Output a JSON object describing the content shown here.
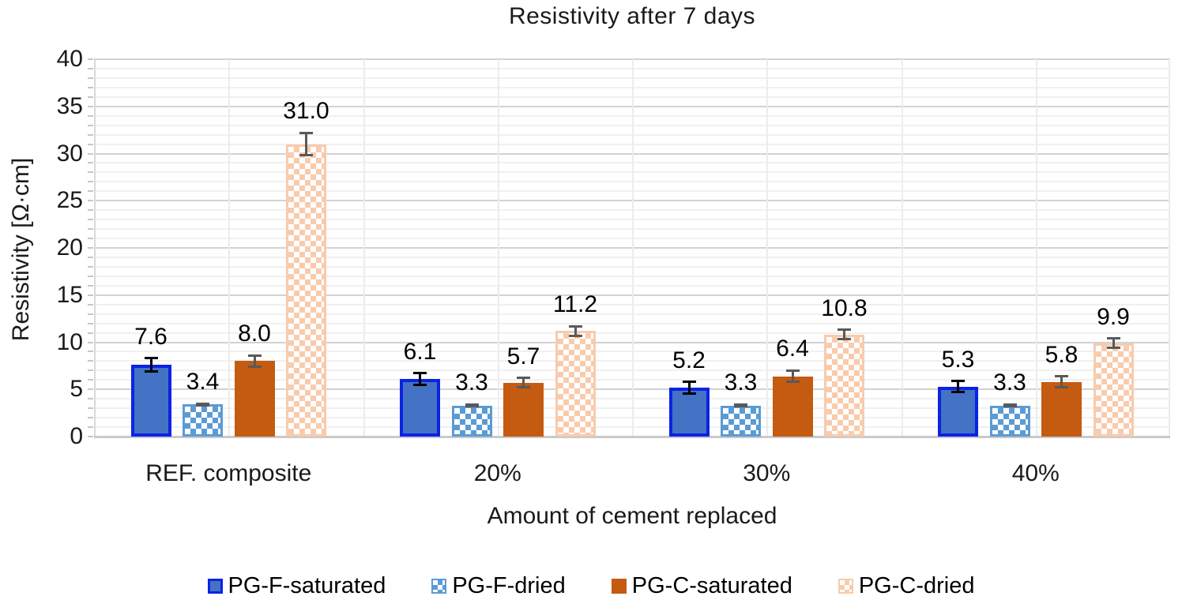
{
  "title": "Resistivity after 7 days",
  "chart_data": {
    "type": "bar",
    "title": "Resistivity after 7 days",
    "xlabel": "Amount of cement replaced",
    "ylabel": "Resistivity [Ω·cm]",
    "categories": [
      "REF. composite",
      "20%",
      "30%",
      "40%"
    ],
    "series": [
      {
        "name": "PG-F-saturated",
        "values": [
          7.6,
          6.1,
          5.2,
          5.3
        ],
        "errors": [
          0.7,
          0.6,
          0.6,
          0.6
        ],
        "pattern": "solid",
        "fill": "#4472C4",
        "border": "#0a23e6",
        "border_px": 4,
        "error_color": "#000000"
      },
      {
        "name": "PG-F-dried",
        "values": [
          3.4,
          3.3,
          3.3,
          3.3
        ],
        "errors": [
          0.1,
          0.1,
          0.1,
          0.1
        ],
        "pattern": "checker",
        "fill": "#5B9BD5",
        "border": "#5B9BD5",
        "border_px": 3,
        "error_color": "#595959"
      },
      {
        "name": "PG-C-saturated",
        "values": [
          8.0,
          5.7,
          6.4,
          5.8
        ],
        "errors": [
          0.6,
          0.5,
          0.6,
          0.6
        ],
        "pattern": "solid",
        "fill": "#C55A11",
        "border": "#C55A11",
        "border_px": 0,
        "error_color": "#595959"
      },
      {
        "name": "PG-C-dried",
        "values": [
          31.0,
          11.2,
          10.8,
          9.9
        ],
        "errors": [
          1.2,
          0.5,
          0.5,
          0.5
        ],
        "pattern": "checker",
        "fill": "#F8CBAD",
        "border": "#F8CBAD",
        "border_px": 3,
        "error_color": "#595959"
      }
    ],
    "ylim": [
      0,
      40
    ],
    "y_major_step": 5,
    "y_minor_step": 1,
    "grid": "horizontal-minor-and-major, vertical-half-category",
    "legend_position": "bottom",
    "data_label_decimals": 1
  }
}
